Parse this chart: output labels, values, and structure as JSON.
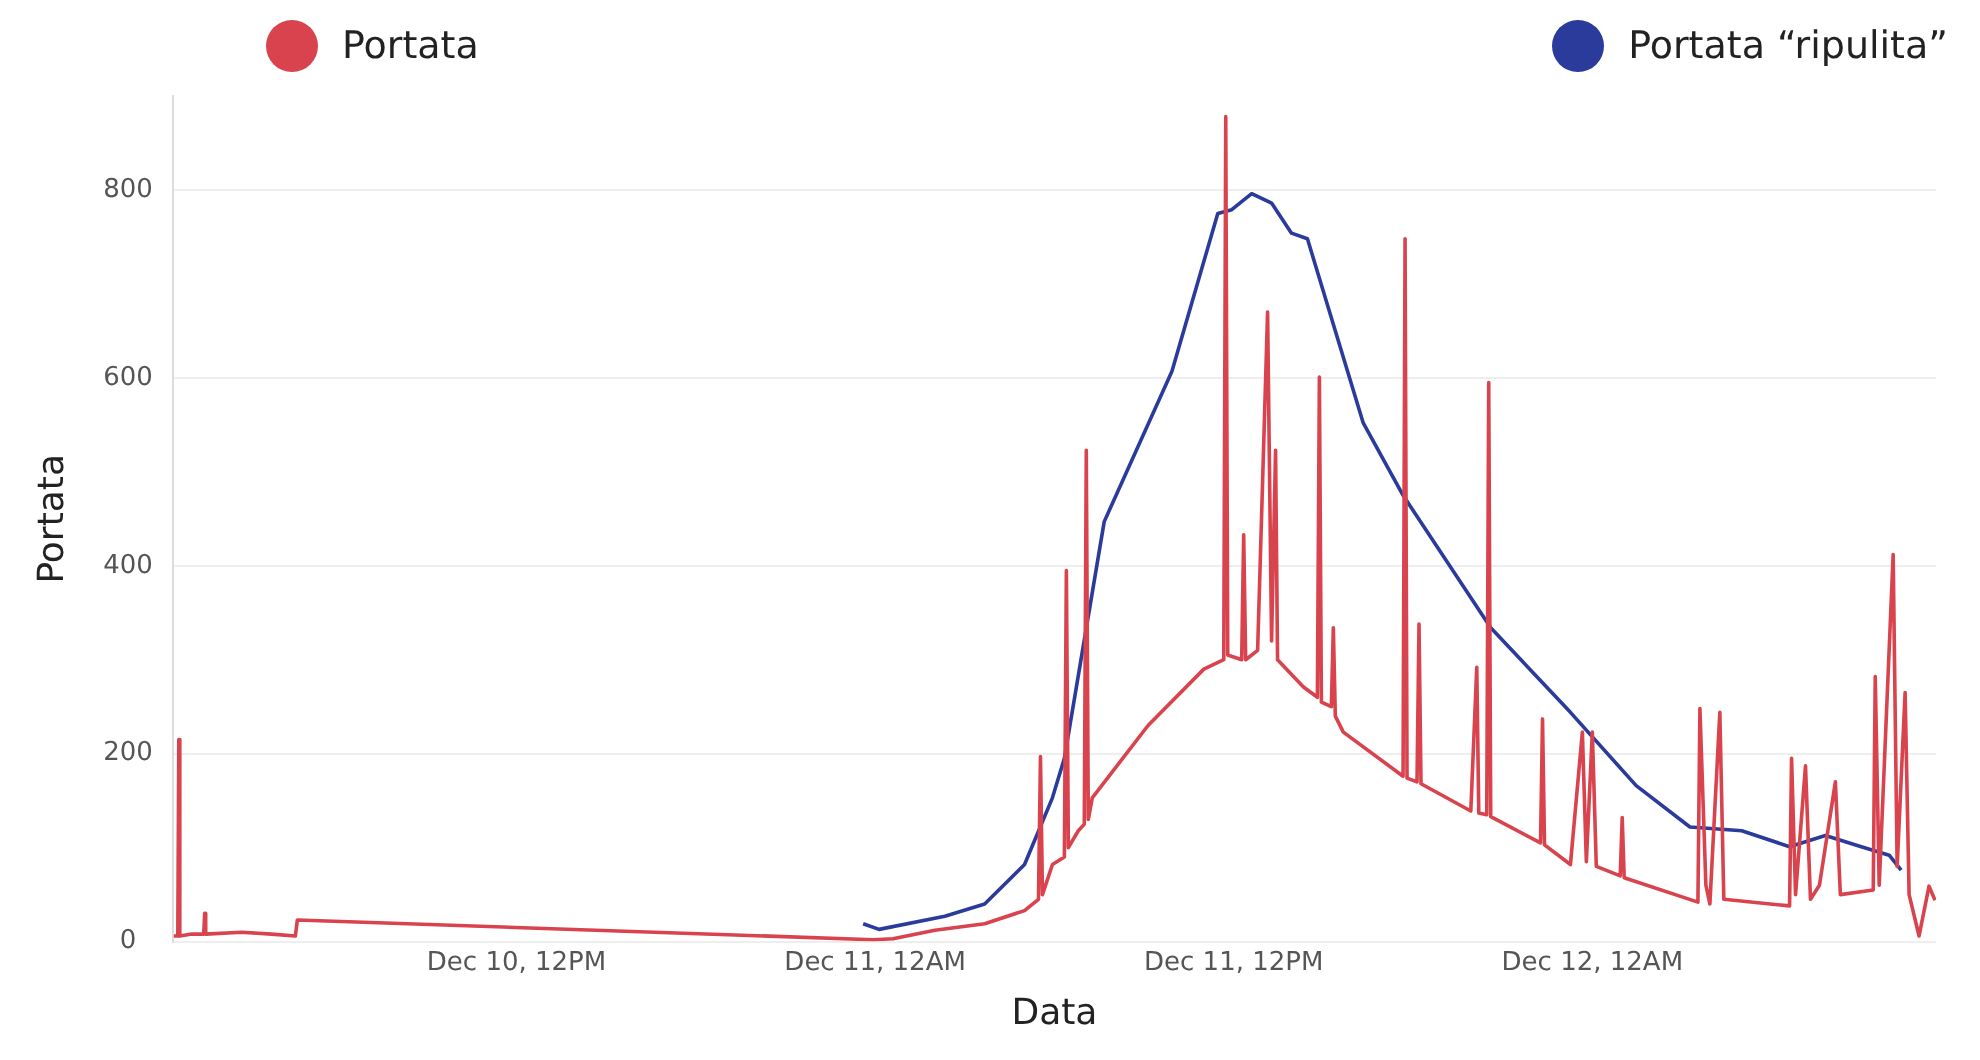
{
  "chart_data": {
    "type": "line",
    "xlabel": "Data",
    "ylabel": "Portata",
    "xlim": [
      "--12-10T00:30",
      "--12-12T11:30"
    ],
    "xticks": [
      {
        "value": "--12-10T12:00",
        "label": "Dec 10, 12PM"
      },
      {
        "value": "--12-11T00:00",
        "label": "Dec 11, 12AM"
      },
      {
        "value": "--12-11T12:00",
        "label": "Dec 11, 12PM"
      },
      {
        "value": "--12-12T00:00",
        "label": "Dec 12, 12AM"
      }
    ],
    "ylim": [
      0,
      900
    ],
    "yticks": [
      0,
      200,
      400,
      600,
      800
    ],
    "grid": "y",
    "legend": "top",
    "marker": "none",
    "line_style": "solid",
    "series": [
      {
        "name": "Portata",
        "color": "#d9434d",
        "x": [
          "--12-10T00:32",
          "--12-10T00:40",
          "--12-10T00:42",
          "--12-10T00:44",
          "--12-10T01:08",
          "--12-10T01:32",
          "--12-10T01:34",
          "--12-10T01:36",
          "--12-10T02:48",
          "--12-10T03:48",
          "--12-10T04:36",
          "--12-10T04:40",
          "--12-10T23:56",
          "--12-11T00:36",
          "--12-11T02:00",
          "--12-11T03:40",
          "--12-11T05:00",
          "--12-11T05:28",
          "--12-11T05:32",
          "--12-11T05:36",
          "--12-11T05:56",
          "--12-11T06:20",
          "--12-11T06:24",
          "--12-11T06:28",
          "--12-11T06:48",
          "--12-11T07:00",
          "--12-11T07:04",
          "--12-11T07:08",
          "--12-11T07:16",
          "--12-11T09:08",
          "--12-11T11:00",
          "--12-11T11:40",
          "--12-11T11:44",
          "--12-11T11:48",
          "--12-11T12:16",
          "--12-11T12:20",
          "--12-11T12:24",
          "--12-11T12:48",
          "--12-11T13:08",
          "--12-11T13:16",
          "--12-11T13:24",
          "--12-11T13:28",
          "--12-11T14:20",
          "--12-11T14:48",
          "--12-11T14:52",
          "--12-11T14:56",
          "--12-11T15:16",
          "--12-11T15:20",
          "--12-11T15:24",
          "--12-11T15:40",
          "--12-11T17:40",
          "--12-11T17:44",
          "--12-11T17:48",
          "--12-11T18:08",
          "--12-11T18:12",
          "--12-11T18:16",
          "--12-11T19:56",
          "--12-11T20:08",
          "--12-11T20:12",
          "--12-11T20:28",
          "--12-11T20:32",
          "--12-11T20:36",
          "--12-11T22:16",
          "--12-11T22:20",
          "--12-11T22:24",
          "--12-11T23:16",
          "--12-11T23:40",
          "--12-11T23:48",
          "--12-12T00:00",
          "--12-12T00:08",
          "--12-12T00:56",
          "--12-12T01:00",
          "--12-12T01:04",
          "--12-12T03:32",
          "--12-12T03:36",
          "--12-12T03:48",
          "--12-12T03:56",
          "--12-12T04:16",
          "--12-12T04:24",
          "--12-12T06:36",
          "--12-12T06:40",
          "--12-12T06:48",
          "--12-12T07:08",
          "--12-12T07:18",
          "--12-12T07:36",
          "--12-12T08:08",
          "--12-12T08:18",
          "--12-12T09:24",
          "--12-12T09:28",
          "--12-12T09:36",
          "--12-12T10:04",
          "--12-12T10:12",
          "--12-12T10:28",
          "--12-12T10:36",
          "--12-12T10:56",
          "--12-12T11:16",
          "--12-12T11:28"
        ],
        "values": [
          6,
          6,
          215,
          6,
          8,
          8,
          30,
          8,
          10,
          8,
          6,
          23,
          2,
          3,
          12,
          19,
          33,
          45,
          197,
          50,
          82,
          90,
          395,
          100,
          118,
          125,
          523,
          130,
          153,
          230,
          290,
          300,
          878,
          305,
          300,
          433,
          300,
          310,
          670,
          320,
          523,
          300,
          271,
          260,
          601,
          255,
          250,
          334,
          240,
          223,
          176,
          748,
          174,
          170,
          338,
          168,
          139,
          292,
          137,
          135,
          595,
          133,
          105,
          237,
          103,
          82,
          223,
          85,
          223,
          80,
          70,
          132,
          68,
          42,
          248,
          60,
          40,
          244,
          45,
          38,
          195,
          50,
          187,
          45,
          60,
          170,
          50,
          55,
          282,
          60,
          412,
          80,
          265,
          50,
          6,
          59,
          44
        ]
      },
      {
        "name": "Portata “ripulita”",
        "color": "#2a3b9c",
        "x": [
          "--12-10T23:36",
          "--12-11T00:08",
          "--12-11T02:20",
          "--12-11T03:40",
          "--12-11T05:00",
          "--12-11T05:56",
          "--12-11T06:20",
          "--12-11T07:40",
          "--12-11T09:56",
          "--12-11T11:28",
          "--12-11T11:56",
          "--12-11T12:36",
          "--12-11T13:16",
          "--12-11T13:56",
          "--12-11T14:28",
          "--12-11T15:16",
          "--12-11T16:20",
          "--12-11T17:40",
          "--12-11T20:36",
          "--12-11T23:16",
          "--12-12T01:28",
          "--12-12T03:16",
          "--12-12T05:00",
          "--12-12T06:36",
          "--12-12T07:48",
          "--12-12T09:00",
          "--12-12T09:56",
          "--12-12T10:20"
        ],
        "values": [
          19,
          13,
          27,
          40,
          82,
          153,
          195,
          447,
          607,
          775,
          779,
          796,
          786,
          754,
          748,
          664,
          552,
          475,
          334,
          244,
          166,
          122,
          118,
          101,
          113,
          101,
          92,
          76
        ]
      }
    ]
  }
}
